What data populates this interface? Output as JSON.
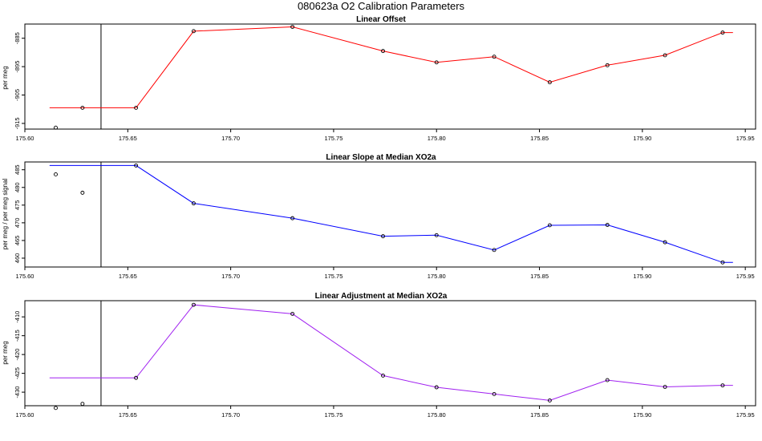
{
  "figure_title": "080623a   O2 Calibration Parameters",
  "chart_data": [
    {
      "type": "line",
      "title": "Linear Offset",
      "xlabel": "",
      "ylabel": "per meg",
      "color": "#ff0000",
      "xlim": [
        175.6,
        175.955
      ],
      "ylim": [
        -917,
        -880
      ],
      "x_ticks": [
        175.6,
        175.65,
        175.7,
        175.75,
        175.8,
        175.85,
        175.9,
        175.95
      ],
      "x_tick_labels": [
        "175.60",
        "175.65",
        "175.70",
        "175.75",
        "175.80",
        "175.85",
        "175.90",
        "175.95"
      ],
      "y_ticks": [
        -915,
        -905,
        -895,
        -885
      ],
      "y_tick_labels": [
        "-915",
        "-905",
        "-895",
        "-885"
      ],
      "vline_x": 175.637,
      "line_x": [
        175.612,
        175.654,
        175.682,
        175.73,
        175.774,
        175.8,
        175.828,
        175.855,
        175.883,
        175.911,
        175.939,
        175.944
      ],
      "line_y": [
        -909.5,
        -909.5,
        -882.5,
        -881.0,
        -889.5,
        -893.5,
        -891.5,
        -900.5,
        -894.5,
        -891.0,
        -883.0,
        -883.0
      ],
      "points_x": [
        175.615,
        175.628,
        175.654,
        175.682,
        175.73,
        175.774,
        175.8,
        175.828,
        175.855,
        175.883,
        175.911,
        175.939
      ],
      "points_y": [
        -916.5,
        -909.5,
        -909.5,
        -882.5,
        -881.0,
        -889.5,
        -893.5,
        -891.5,
        -900.5,
        -894.5,
        -891.0,
        -883.0
      ]
    },
    {
      "type": "line",
      "title": "Linear Slope at Median XO2a",
      "xlabel": "",
      "ylabel": "per meg / per meg signal",
      "color": "#0000ff",
      "xlim": [
        175.6,
        175.955
      ],
      "ylim": [
        457.5,
        487.2
      ],
      "x_ticks": [
        175.6,
        175.65,
        175.7,
        175.75,
        175.8,
        175.85,
        175.9,
        175.95
      ],
      "x_tick_labels": [
        "175.60",
        "175.65",
        "175.70",
        "175.75",
        "175.80",
        "175.85",
        "175.90",
        "175.95"
      ],
      "y_ticks": [
        460,
        465,
        470,
        475,
        480,
        485
      ],
      "y_tick_labels": [
        "460",
        "465",
        "470",
        "475",
        "480",
        "485"
      ],
      "vline_x": 175.637,
      "line_x": [
        175.612,
        175.654,
        175.682,
        175.73,
        175.774,
        175.8,
        175.828,
        175.855,
        175.883,
        175.911,
        175.939,
        175.944
      ],
      "line_y": [
        486.2,
        486.2,
        475.5,
        471.3,
        466.2,
        466.5,
        462.3,
        469.3,
        469.4,
        464.5,
        458.8,
        458.8
      ],
      "points_x": [
        175.615,
        175.628,
        175.654,
        175.682,
        175.73,
        175.774,
        175.8,
        175.828,
        175.855,
        175.883,
        175.911,
        175.939
      ],
      "points_y": [
        483.7,
        478.5,
        486.2,
        475.5,
        471.3,
        466.2,
        466.5,
        462.3,
        469.3,
        469.4,
        464.5,
        458.8
      ]
    },
    {
      "type": "line",
      "title": "Linear Adjustment at Median XO2a",
      "xlabel": "",
      "ylabel": "per meg",
      "color": "#a020f0",
      "xlim": [
        175.6,
        175.955
      ],
      "ylim": [
        -433.6,
        -405.7
      ],
      "x_ticks": [
        175.6,
        175.65,
        175.7,
        175.75,
        175.8,
        175.85,
        175.9,
        175.95
      ],
      "x_tick_labels": [
        "175.60",
        "175.65",
        "175.70",
        "175.75",
        "175.80",
        "175.85",
        "175.90",
        "175.95"
      ],
      "y_ticks": [
        -430,
        -425,
        -420,
        -415,
        -410
      ],
      "y_tick_labels": [
        "-430",
        "-425",
        "-420",
        "-415",
        "-410"
      ],
      "vline_x": 175.637,
      "line_x": [
        175.612,
        175.654,
        175.682,
        175.73,
        175.774,
        175.8,
        175.828,
        175.855,
        175.883,
        175.911,
        175.939,
        175.944
      ],
      "line_y": [
        -426.2,
        -426.2,
        -406.8,
        -409.2,
        -425.6,
        -428.7,
        -430.5,
        -432.2,
        -426.8,
        -428.6,
        -428.2,
        -428.2
      ],
      "points_x": [
        175.615,
        175.628,
        175.654,
        175.682,
        175.73,
        175.774,
        175.8,
        175.828,
        175.855,
        175.883,
        175.911,
        175.939
      ],
      "points_y": [
        -434.2,
        -433.1,
        -426.2,
        -406.8,
        -409.2,
        -425.6,
        -428.7,
        -430.5,
        -432.2,
        -426.8,
        -428.6,
        -428.2
      ]
    }
  ]
}
